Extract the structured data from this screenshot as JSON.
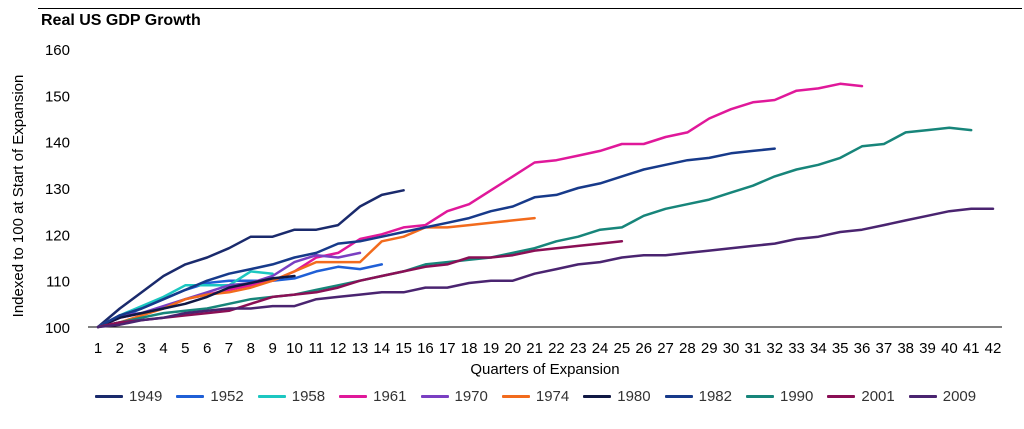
{
  "chart_data": {
    "type": "line",
    "title": "Real US GDP Growth",
    "xlabel": "Quarters of Expansion",
    "ylabel": "Indexed to 100 at Start of Expansion",
    "ylim": [
      100,
      160
    ],
    "yticks": [
      100,
      110,
      120,
      130,
      140,
      150,
      160
    ],
    "xlim": [
      1,
      42
    ],
    "xticks": [
      1,
      2,
      3,
      4,
      5,
      6,
      7,
      8,
      9,
      10,
      11,
      12,
      13,
      14,
      15,
      16,
      17,
      18,
      19,
      20,
      21,
      22,
      23,
      24,
      25,
      26,
      27,
      28,
      29,
      30,
      31,
      32,
      33,
      34,
      35,
      36,
      37,
      38,
      39,
      40,
      41,
      42
    ],
    "grid": false,
    "legend_position": "bottom",
    "series": [
      {
        "name": "1949",
        "color": "#1a2a6c",
        "values": [
          100,
          104,
          107.5,
          111,
          113.5,
          115,
          117,
          119.5,
          119.5,
          121,
          121,
          122,
          126,
          128.5,
          129.5
        ]
      },
      {
        "name": "1952",
        "color": "#1f5fd6",
        "values": [
          100,
          102,
          104,
          106,
          108,
          109.5,
          110,
          110,
          110,
          110.5,
          112,
          113,
          112.5,
          113.5
        ]
      },
      {
        "name": "1958",
        "color": "#1cc7c1",
        "values": [
          100,
          102.5,
          104.5,
          106.5,
          109,
          109,
          109,
          112,
          111.5
        ]
      },
      {
        "name": "1961",
        "color": "#e0189a",
        "values": [
          100,
          102,
          103,
          104,
          106,
          107,
          108,
          109,
          110,
          112,
          115,
          116,
          119,
          120,
          121.5,
          122,
          125,
          126.5,
          129.5,
          132.5,
          135.5,
          136,
          137,
          138,
          139.5,
          139.5,
          141,
          142,
          145,
          147,
          148.5,
          149,
          151,
          151.5,
          152.5,
          152
        ]
      },
      {
        "name": "1970",
        "color": "#7a3fc2",
        "values": [
          100,
          102.5,
          103,
          104.5,
          106,
          107.5,
          109,
          109.5,
          111,
          114,
          115.5,
          115,
          116
        ]
      },
      {
        "name": "1974",
        "color": "#f26b1d",
        "values": [
          100,
          101,
          102.5,
          104,
          106,
          107,
          107.5,
          108.5,
          110,
          112,
          114,
          114,
          114,
          118.5,
          119.5,
          121.5,
          121.5,
          122,
          122.5,
          123,
          123.5
        ]
      },
      {
        "name": "1980",
        "color": "#101844",
        "values": [
          100,
          102,
          103,
          104,
          105,
          106.5,
          108.5,
          109.5,
          110.5,
          111
        ]
      },
      {
        "name": "1982",
        "color": "#173a8a",
        "values": [
          100,
          102.5,
          104,
          106,
          108,
          110,
          111.5,
          112.5,
          113.5,
          115,
          116,
          118,
          118.5,
          119.5,
          120.5,
          121.5,
          122.5,
          123.5,
          125,
          126,
          128,
          128.5,
          130,
          131,
          132.5,
          134,
          135,
          136,
          136.5,
          137.5,
          138,
          138.5
        ]
      },
      {
        "name": "1990",
        "color": "#17857a",
        "values": [
          100,
          101,
          102,
          103,
          103.5,
          104,
          105,
          106,
          106.5,
          107,
          108,
          109,
          110,
          111,
          112,
          113.5,
          114,
          114.5,
          115,
          116,
          117,
          118.5,
          119.5,
          121,
          121.5,
          124,
          125.5,
          126.5,
          127.5,
          129,
          130.5,
          132.5,
          134,
          135,
          136.5,
          139,
          139.5,
          142,
          142.5,
          143,
          142.5
        ]
      },
      {
        "name": "2001",
        "color": "#8a0f55",
        "values": [
          100,
          101,
          101.5,
          102,
          102.5,
          103,
          103.5,
          105,
          106.5,
          107,
          107.5,
          108.5,
          110,
          111,
          112,
          113,
          113.5,
          115,
          115,
          115.5,
          116.5,
          117,
          117.5,
          118,
          118.5
        ]
      },
      {
        "name": "2009",
        "color": "#4a2470",
        "values": [
          100,
          100.5,
          101.5,
          102,
          103,
          103.5,
          104,
          104,
          104.5,
          104.5,
          106,
          106.5,
          107,
          107.5,
          107.5,
          108.5,
          108.5,
          109.5,
          110,
          110,
          111.5,
          112.5,
          113.5,
          114,
          115,
          115.5,
          115.5,
          116,
          116.5,
          117,
          117.5,
          118,
          119,
          119.5,
          120.5,
          121,
          122,
          123,
          124,
          125,
          125.5,
          125.5
        ]
      }
    ]
  }
}
